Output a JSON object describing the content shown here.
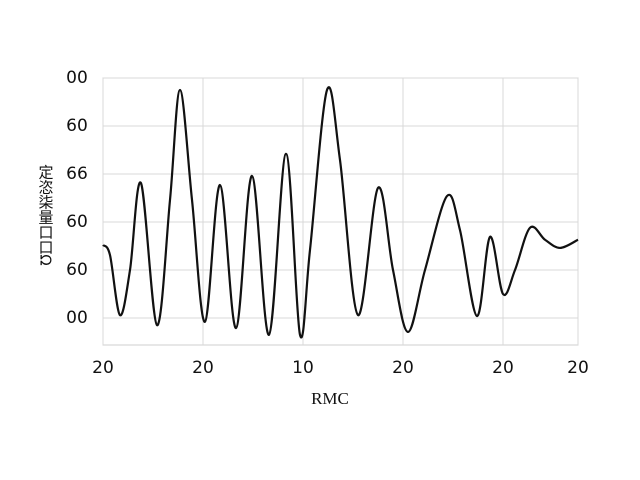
{
  "chart_data": {
    "type": "line",
    "x_label": "RMC",
    "y_label": "定恣柒量口口Ω",
    "x": [
      0,
      0.07,
      0.17,
      0.27,
      0.38,
      0.54,
      0.67,
      0.77,
      0.89,
      1.02,
      1.17,
      1.33,
      1.49,
      1.66,
      1.83,
      1.97,
      2.07,
      2.24,
      2.37,
      2.55,
      2.75,
      2.9,
      3.05,
      3.22,
      3.44,
      3.57,
      3.74,
      3.87,
      4.0,
      4.12,
      4.27,
      4.42,
      4.57,
      4.75
    ],
    "series": [
      {
        "color": "#111111",
        "values": [
          1.52,
          1.31,
          0.06,
          1.0,
          2.81,
          -0.15,
          2.46,
          4.75,
          2.46,
          -0.08,
          2.77,
          -0.21,
          2.96,
          -0.35,
          3.42,
          -0.35,
          1.42,
          4.75,
          3.29,
          0.06,
          2.71,
          1.0,
          -0.29,
          1.0,
          2.54,
          1.83,
          0.04,
          1.69,
          0.5,
          1.0,
          1.88,
          1.63,
          1.46,
          1.63
        ]
      }
    ],
    "xlim": [
      0,
      4.75
    ],
    "ylim": [
      -0.5625,
      5
    ],
    "xticks": [
      {
        "value": 0,
        "label": "20"
      },
      {
        "value": 1,
        "label": "20"
      },
      {
        "value": 2,
        "label": "10"
      },
      {
        "value": 3,
        "label": "20"
      },
      {
        "value": 4,
        "label": "20"
      },
      {
        "value": 4.75,
        "label": "20"
      }
    ],
    "yticks": [
      {
        "value": 0,
        "label": "00"
      },
      {
        "value": 1,
        "label": "60"
      },
      {
        "value": 2,
        "label": "60"
      },
      {
        "value": 3,
        "label": "66"
      },
      {
        "value": 4,
        "label": "60"
      },
      {
        "value": 5,
        "label": "00"
      }
    ],
    "grid": true
  }
}
